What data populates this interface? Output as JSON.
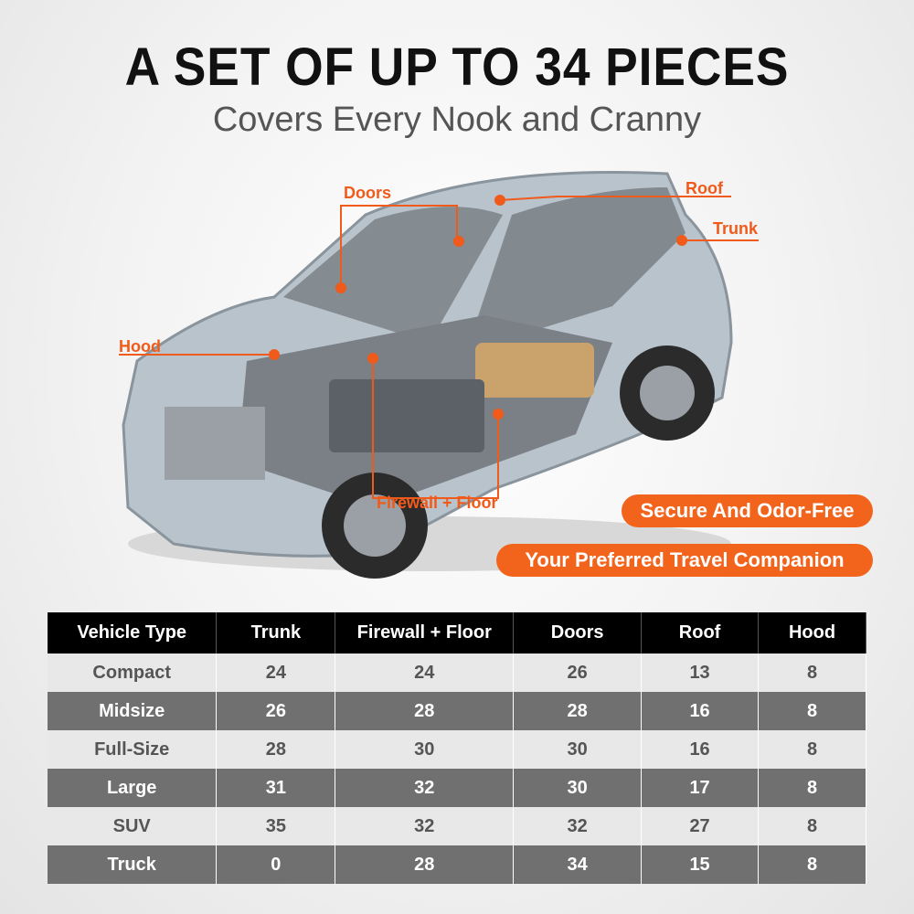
{
  "header": {
    "title": "A SET OF UP TO 34 PIECES",
    "subtitle": "Covers Every Nook and Cranny"
  },
  "callouts": {
    "doors": "Doors",
    "roof": "Roof",
    "trunk": "Trunk",
    "hood": "Hood",
    "firewall_floor": "Firewall + Floor"
  },
  "badges": [
    "Secure And Odor-Free",
    "Your Preferred Travel Companion"
  ],
  "accent_color": "#f2631c",
  "table": {
    "headers": [
      "Vehicle Type",
      "Trunk",
      "Firewall + Floor",
      "Doors",
      "Roof",
      "Hood"
    ],
    "rows": [
      [
        "Compact",
        "24",
        "24",
        "26",
        "13",
        "8"
      ],
      [
        "Midsize",
        "26",
        "28",
        "28",
        "16",
        "8"
      ],
      [
        "Full-Size",
        "28",
        "30",
        "30",
        "16",
        "8"
      ],
      [
        "Large",
        "31",
        "32",
        "30",
        "17",
        "8"
      ],
      [
        "SUV",
        "35",
        "32",
        "32",
        "27",
        "8"
      ],
      [
        "Truck",
        "0",
        "28",
        "34",
        "15",
        "8"
      ]
    ]
  }
}
